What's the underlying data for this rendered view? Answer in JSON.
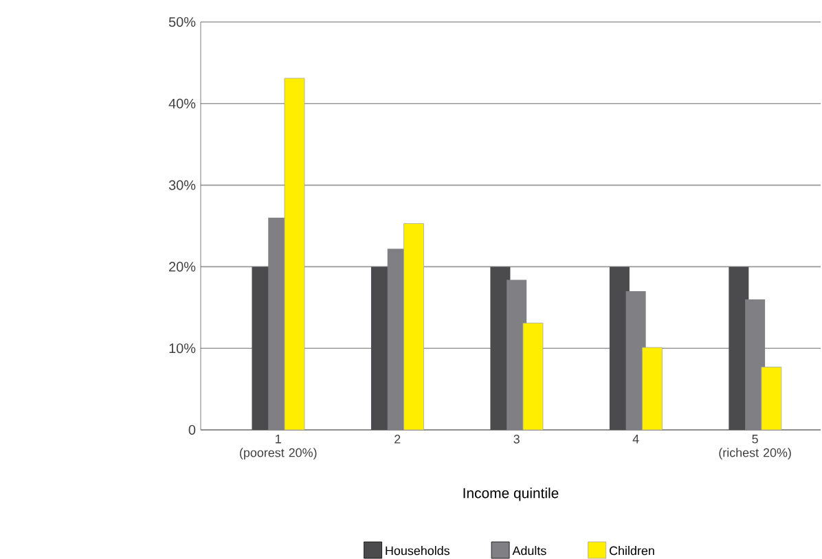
{
  "chart_data": {
    "type": "bar",
    "categories": [
      "1 (poorest 20%)",
      "2",
      "3",
      "4",
      "5 (richest 20%)"
    ],
    "xlabel": "Income quintile",
    "series": [
      {
        "name": "Households",
        "color": "#4b4b4d",
        "values": [
          20,
          20,
          20,
          20,
          20
        ]
      },
      {
        "name": "Adults",
        "color": "#808084",
        "values": [
          26,
          22.2,
          18.4,
          17,
          16
        ]
      },
      {
        "name": "Children",
        "color": "#ffee00",
        "values": [
          43.1,
          25.3,
          13.1,
          10.1,
          7.7
        ]
      }
    ],
    "ylim": [
      0,
      50
    ],
    "yticks": [
      0,
      {
        "value": 10,
        "label": "10%"
      },
      {
        "value": 20,
        "label": "20%"
      },
      {
        "value": 30,
        "label": "30%"
      },
      {
        "value": 40,
        "label": "40%"
      },
      {
        "value": 50,
        "label": "50%"
      }
    ],
    "grid": "y",
    "legend": "bottom"
  }
}
